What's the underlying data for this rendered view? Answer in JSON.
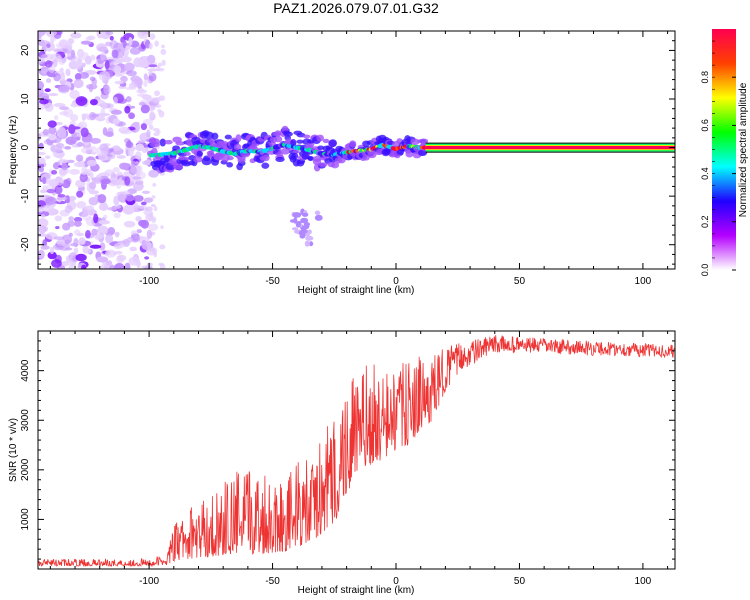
{
  "title": "PAZ1.2026.079.07.01.G32",
  "chart_data": [
    {
      "type": "heatmap",
      "name": "spectrogram",
      "xlabel": "Height of straight line (km)",
      "ylabel": "Frequency (Hz)",
      "xlim": [
        -145,
        113
      ],
      "ylim": [
        -25,
        24
      ],
      "xticks": [
        -100,
        -50,
        0,
        50,
        100
      ],
      "yticks": [
        -20,
        -10,
        0,
        10,
        20
      ],
      "ridge": [
        {
          "x": -98,
          "y": -1.6
        },
        {
          "x": -90,
          "y": -1.2
        },
        {
          "x": -85,
          "y": -0.5
        },
        {
          "x": -80,
          "y": 0.3
        },
        {
          "x": -75,
          "y": 0.0
        },
        {
          "x": -70,
          "y": -0.8
        },
        {
          "x": -65,
          "y": -1.3
        },
        {
          "x": -60,
          "y": -0.6
        },
        {
          "x": -55,
          "y": -0.9
        },
        {
          "x": -50,
          "y": -0.2
        },
        {
          "x": -45,
          "y": 0.6
        },
        {
          "x": -40,
          "y": 0.0
        },
        {
          "x": -35,
          "y": -0.5
        },
        {
          "x": -30,
          "y": -1.3
        },
        {
          "x": -25,
          "y": -1.5
        },
        {
          "x": -20,
          "y": -1.0
        },
        {
          "x": -15,
          "y": -0.7
        },
        {
          "x": -10,
          "y": -0.4
        },
        {
          "x": -5,
          "y": 0.6
        },
        {
          "x": 0,
          "y": -0.3
        },
        {
          "x": 5,
          "y": 0.3
        },
        {
          "x": 10,
          "y": 0.0
        },
        {
          "x": 15,
          "y": 0.0
        },
        {
          "x": 113,
          "y": 0.0
        }
      ],
      "noise_region_x": [
        -145,
        -100
      ],
      "blob": {
        "x": [
          -42,
          -30
        ],
        "y": [
          -20,
          -13
        ]
      },
      "constant_line": {
        "x": [
          12,
          113
        ],
        "y": 0
      }
    },
    {
      "type": "colorbar",
      "name": "colorbar",
      "label": "Normalized spectral amplitude",
      "range": [
        0,
        1
      ],
      "ticks": [
        "0.0",
        "0.2",
        "0.4",
        "0.6",
        "0.8"
      ],
      "tick_values": [
        0.0,
        0.2,
        0.4,
        0.6,
        0.8
      ],
      "colors": [
        "#ffffff",
        "#b400ff",
        "#2000ff",
        "#00ffff",
        "#00ff00",
        "#ffff00",
        "#ff4000",
        "#ff0050"
      ]
    },
    {
      "type": "line",
      "name": "snr",
      "xlabel": "Height of straight line (km)",
      "ylabel": "SNR (10 * v/v)",
      "xlim": [
        -145,
        113
      ],
      "ylim": [
        0,
        4800
      ],
      "xticks": [
        -100,
        -50,
        0,
        50,
        100
      ],
      "yticks": [
        1000,
        2000,
        3000,
        4000
      ],
      "color": "#ee3333",
      "envelope": [
        {
          "x": -145,
          "lo": 60,
          "hi": 200
        },
        {
          "x": -100,
          "lo": 60,
          "hi": 210
        },
        {
          "x": -93,
          "lo": 80,
          "hi": 300
        },
        {
          "x": -90,
          "lo": 150,
          "hi": 900
        },
        {
          "x": -85,
          "lo": 200,
          "hi": 1200
        },
        {
          "x": -75,
          "lo": 250,
          "hi": 1500
        },
        {
          "x": -65,
          "lo": 300,
          "hi": 2000
        },
        {
          "x": -55,
          "lo": 300,
          "hi": 2100
        },
        {
          "x": -45,
          "lo": 350,
          "hi": 1900
        },
        {
          "x": -40,
          "lo": 450,
          "hi": 2200
        },
        {
          "x": -35,
          "lo": 500,
          "hi": 2200
        },
        {
          "x": -30,
          "lo": 700,
          "hi": 2700
        },
        {
          "x": -25,
          "lo": 900,
          "hi": 3200
        },
        {
          "x": -20,
          "lo": 1500,
          "hi": 3900
        },
        {
          "x": -15,
          "lo": 2000,
          "hi": 4000
        },
        {
          "x": -10,
          "lo": 2100,
          "hi": 4200
        },
        {
          "x": -5,
          "lo": 2200,
          "hi": 4000
        },
        {
          "x": 0,
          "lo": 2400,
          "hi": 4100
        },
        {
          "x": 5,
          "lo": 2500,
          "hi": 4200
        },
        {
          "x": 10,
          "lo": 2800,
          "hi": 4300
        },
        {
          "x": 15,
          "lo": 3000,
          "hi": 4300
        },
        {
          "x": 20,
          "lo": 3600,
          "hi": 4500
        },
        {
          "x": 25,
          "lo": 3900,
          "hi": 4550
        },
        {
          "x": 30,
          "lo": 4100,
          "hi": 4600
        },
        {
          "x": 40,
          "lo": 4350,
          "hi": 4720
        },
        {
          "x": 60,
          "lo": 4350,
          "hi": 4650
        },
        {
          "x": 80,
          "lo": 4300,
          "hi": 4600
        },
        {
          "x": 100,
          "lo": 4280,
          "hi": 4550
        },
        {
          "x": 113,
          "lo": 4250,
          "hi": 4520
        }
      ]
    }
  ]
}
